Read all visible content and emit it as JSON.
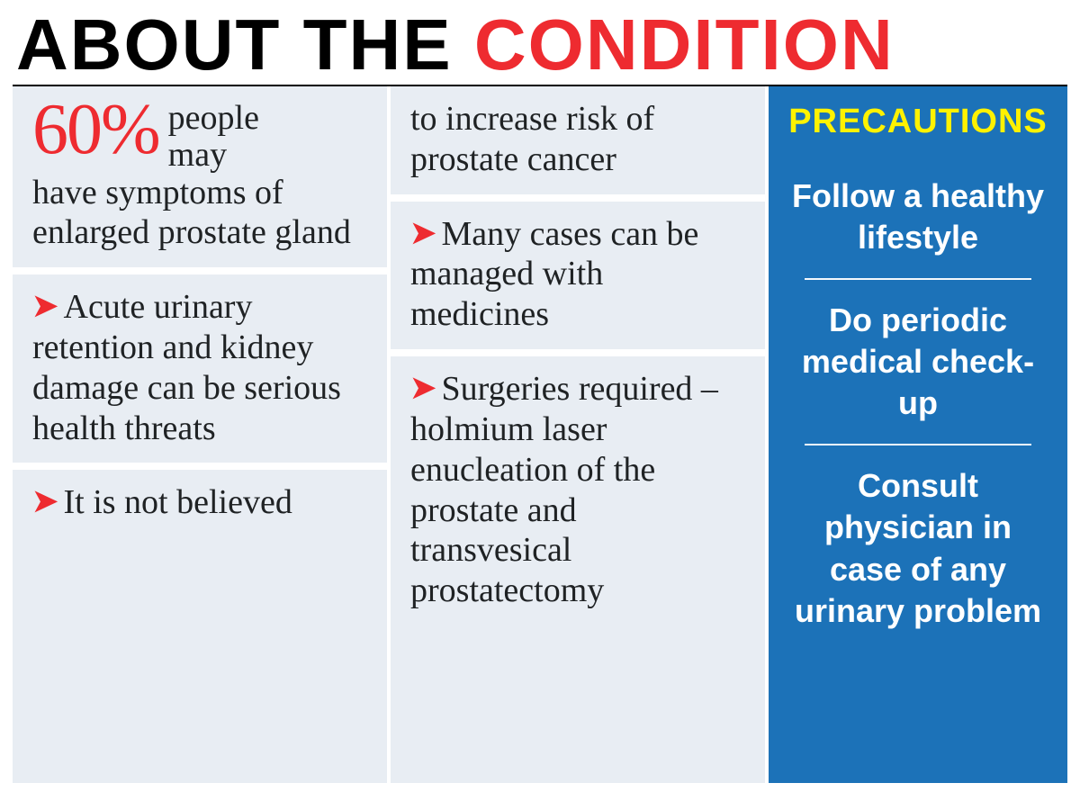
{
  "headline": {
    "part1": "ABOUT THE ",
    "part2": "CONDITION"
  },
  "stat": {
    "big": "60%",
    "side1": "people",
    "side2": "may",
    "cont": "have symptoms of enlarged prostate gland"
  },
  "left": {
    "b2": "Acute urinary retention and kidney damage can be serious health threats",
    "b3": "It is not believed"
  },
  "mid": {
    "cont": "to increase risk of prostate cancer",
    "b2": "Many cases can be managed with medicines",
    "b3": "Surgeries required – holmium laser enucleation of the prostate and transvesical prostatectomy"
  },
  "prec": {
    "title": "PRECAUTIONS",
    "i1": "Follow a healthy lifestyle",
    "i2": "Do periodic medical check-up",
    "i3": "Consult physician in case of any urinary problem"
  },
  "colors": {
    "accent_red": "#ee2b30",
    "panel_blue": "#1c72b8",
    "panel_grey": "#e8edf3",
    "yellow": "#fff200"
  }
}
